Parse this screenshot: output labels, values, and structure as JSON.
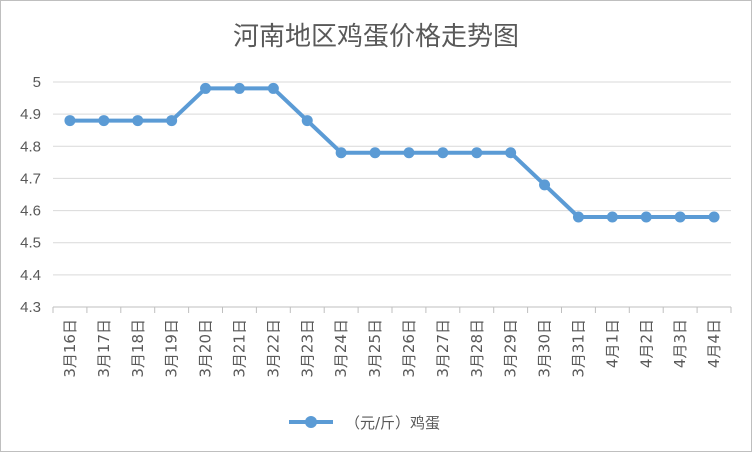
{
  "chart_data": {
    "type": "line",
    "title": "河南地区鸡蛋价格走势图",
    "xlabel": "",
    "ylabel": "",
    "categories": [
      "3月16日",
      "3月17日",
      "3月18日",
      "3月19日",
      "3月20日",
      "3月21日",
      "3月22日",
      "3月23日",
      "3月24日",
      "3月25日",
      "3月26日",
      "3月27日",
      "3月28日",
      "3月29日",
      "3月30日",
      "3月31日",
      "4月1日",
      "4月2日",
      "4月3日",
      "4月4日"
    ],
    "series": [
      {
        "name": "（元/斤）鸡蛋",
        "values": [
          4.88,
          4.88,
          4.88,
          4.88,
          4.98,
          4.98,
          4.98,
          4.88,
          4.78,
          4.78,
          4.78,
          4.78,
          4.78,
          4.78,
          4.68,
          4.58,
          4.58,
          4.58,
          4.58,
          4.58
        ],
        "color": "#5b9bd5"
      }
    ],
    "ylim": [
      4.3,
      5.0
    ],
    "yticks": [
      "4.3",
      "4.4",
      "4.5",
      "4.6",
      "4.7",
      "4.8",
      "4.9",
      "5"
    ],
    "grid": true,
    "legend": "bottom"
  }
}
